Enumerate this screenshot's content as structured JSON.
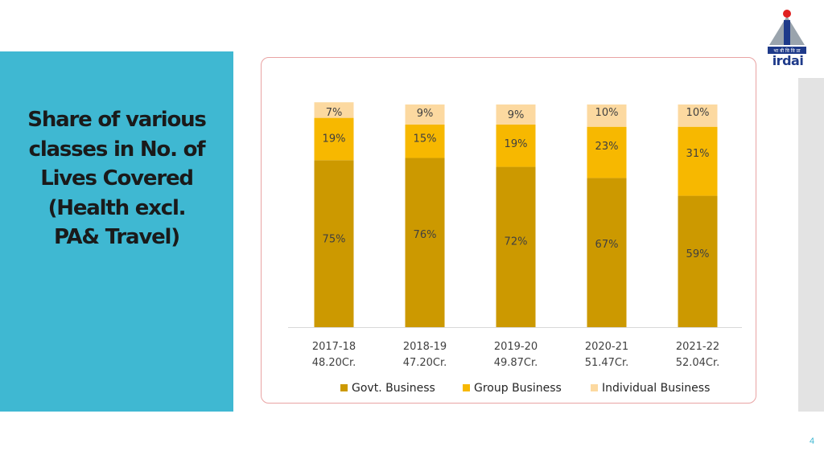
{
  "slide": {
    "title": "Share of various\nclasses in No. of\nLives Covered\n(Health excl.\nPA& Travel)",
    "page_number": "4",
    "logo": {
      "text": "irdai",
      "icon": "irdai-logo-icon"
    }
  },
  "colors": {
    "panel": "#3fb8d2",
    "govt": "#cc9900",
    "group": "#f7b800",
    "individual": "#fcd9a0"
  },
  "chart_data": {
    "type": "bar",
    "stacked": true,
    "categories": [
      "2017-18\n48.20Cr.",
      "2018-19\n47.20Cr.",
      "2019-20\n49.87Cr.",
      "2020-21\n51.47Cr.",
      "2021-22\n52.04Cr."
    ],
    "series": [
      {
        "name": "Govt. Business",
        "values": [
          75,
          76,
          72,
          67,
          59
        ],
        "labels": [
          "75%",
          "76%",
          "72%",
          "67%",
          "59%"
        ]
      },
      {
        "name": "Group Business",
        "values": [
          19,
          15,
          19,
          23,
          31
        ],
        "labels": [
          "19%",
          "15%",
          "19%",
          "23%",
          "31%"
        ]
      },
      {
        "name": "Individual Business",
        "values": [
          7,
          9,
          9,
          10,
          10
        ],
        "labels": [
          "7%",
          "9%",
          "9%",
          "10%",
          "10%"
        ]
      }
    ],
    "ylim": [
      0,
      100
    ],
    "grid": false,
    "legend": "bottom"
  }
}
